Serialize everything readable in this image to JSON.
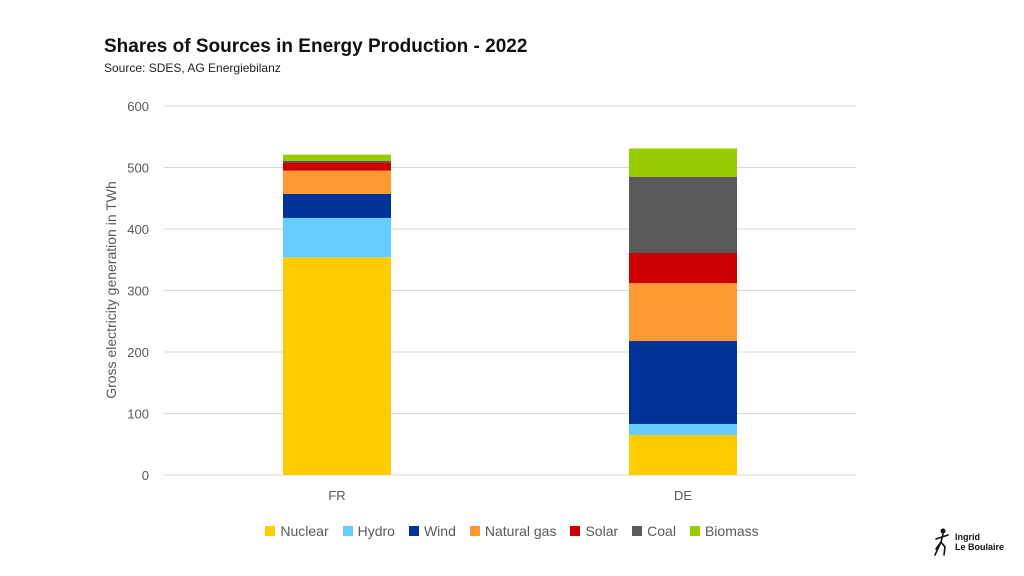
{
  "title": "Shares of Sources in Energy Production - 2022",
  "subtitle": "Source: SDES, AG Energiebilanz",
  "branding": {
    "line1": "Ingrid",
    "line2": "Le Boulaire"
  },
  "chart_data": {
    "type": "bar",
    "stacked": true,
    "categories": [
      "FR",
      "DE"
    ],
    "ylabel": "Gross electricity generation in TWh",
    "ylim": [
      0,
      600
    ],
    "yticks": [
      0,
      100,
      200,
      300,
      400,
      500,
      600
    ],
    "grid": true,
    "legend_position": "bottom",
    "series": [
      {
        "name": "Nuclear",
        "color": "#FFCC00",
        "values": [
          354,
          65
        ]
      },
      {
        "name": "Hydro",
        "color": "#66CCFF",
        "values": [
          64,
          18
        ]
      },
      {
        "name": "Wind",
        "color": "#003399",
        "values": [
          39,
          135
        ]
      },
      {
        "name": "Natural gas",
        "color": "#FF9933",
        "values": [
          38,
          94
        ]
      },
      {
        "name": "Solar",
        "color": "#CC0000",
        "values": [
          13,
          49
        ]
      },
      {
        "name": "Coal",
        "color": "#595959",
        "values": [
          3,
          124
        ]
      },
      {
        "name": "Biomass",
        "color": "#99CC00",
        "values": [
          10,
          46
        ]
      }
    ]
  }
}
